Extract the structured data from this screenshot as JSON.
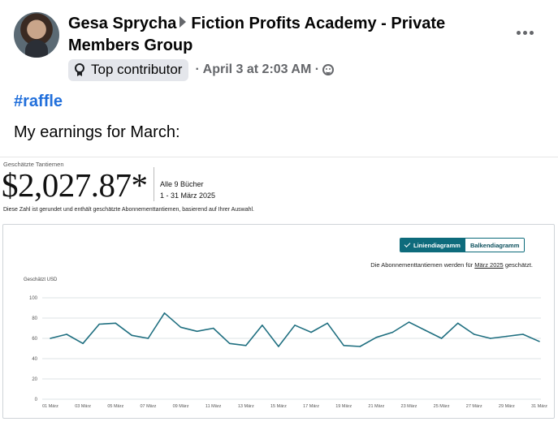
{
  "post": {
    "author": "Gesa Sprycha",
    "group": "Fiction Profits Academy - Private Members Group",
    "badge": "Top contributor",
    "timestamp": "· April 3 at 2:03 AM ·",
    "hashtag": "#raffle",
    "text": "My earnings for March:"
  },
  "report": {
    "estimated_label": "Geschätzte Tantiemen",
    "amount": "$2,027.87*",
    "books": "Alle 9 Bücher",
    "date_range": "1 - 31 März 2025",
    "disclaimer": "Diese Zahl ist gerundet und enthält geschätzte Abonnementtantiemen, basierend auf Ihrer Auswahl.",
    "toggle_line": "Liniendiagramm",
    "toggle_bar": "Balkendiagramm",
    "note_prefix": "Die Abonnementtantiemen werden für",
    "note_month": "März 2025",
    "note_suffix": "geschätzt."
  },
  "colors": {
    "line": "#1f6f80",
    "accent": "#0e6b7c",
    "link": "#216fdb"
  },
  "chart_data": {
    "type": "line",
    "ylabel": "Geschätzt USD",
    "ylim": [
      0,
      100
    ],
    "yticks": [
      0,
      20,
      40,
      60,
      80,
      100
    ],
    "x": [
      "01 März",
      "02 März",
      "03 März",
      "04 März",
      "05 März",
      "06 März",
      "07 März",
      "08 März",
      "09 März",
      "10 März",
      "11 März",
      "12 März",
      "13 März",
      "14 März",
      "15 März",
      "16 März",
      "17 März",
      "18 März",
      "19 März",
      "20 März",
      "21 März",
      "22 März",
      "23 März",
      "24 März",
      "25 März",
      "26 März",
      "27 März",
      "28 März",
      "29 März",
      "30 März",
      "31 März"
    ],
    "xtick_labels": [
      "01 März",
      "03 März",
      "05 März",
      "07 März",
      "09 März",
      "11 März",
      "13 März",
      "15 März",
      "17 März",
      "19 März",
      "21 März",
      "23 März",
      "25 März",
      "27 März",
      "29 März",
      "31 März"
    ],
    "series": [
      {
        "values": [
          60,
          64,
          55,
          74,
          75,
          63,
          60,
          85,
          71,
          67,
          70,
          55,
          53,
          73,
          52,
          73,
          66,
          75,
          53,
          52,
          61,
          66,
          76,
          68,
          60,
          75,
          64,
          60,
          62,
          64,
          57
        ]
      }
    ],
    "grid": true
  }
}
